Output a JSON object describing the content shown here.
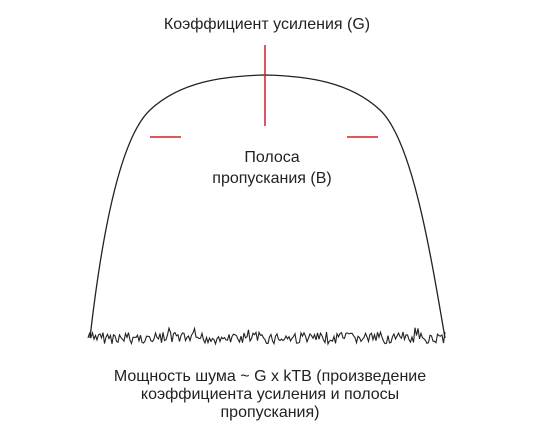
{
  "gain_label": "Коэффициент усиления (G)",
  "bandwidth_label": [
    "Полоса",
    "пропускания (B)"
  ],
  "noise_label": [
    "Мощность шума ~ G x kTB (произведение",
    "коэффициента усиления и полосы",
    "пропускания)"
  ]
}
